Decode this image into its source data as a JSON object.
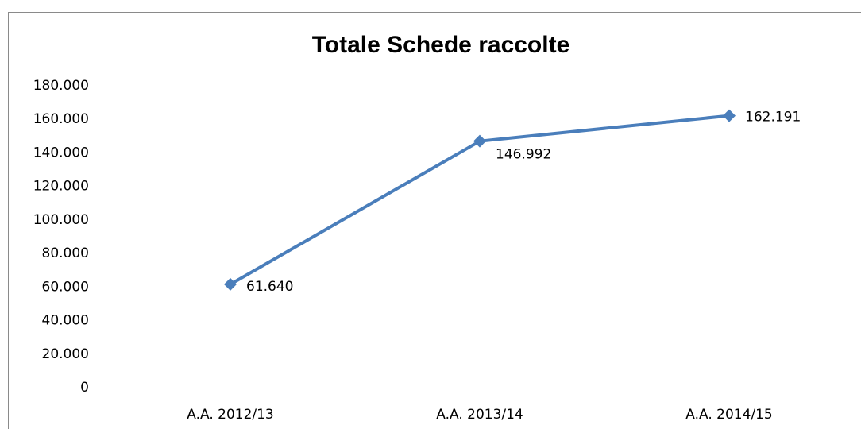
{
  "chart_data": {
    "type": "line",
    "title": "Totale Schede raccolte",
    "categories": [
      "A.A. 2012/13",
      "A.A. 2013/14",
      "A.A. 2014/15"
    ],
    "series": [
      {
        "name": "Totale Schede raccolte",
        "color": "#4a7ebb",
        "values": [
          61640,
          146992,
          162191
        ],
        "value_labels": [
          "61.640",
          "146.992",
          "162.191"
        ]
      }
    ],
    "ylim": [
      0,
      180000
    ],
    "yticks": [
      0,
      {
        "value": 20000,
        "label": "20.000"
      },
      {
        "value": 40000,
        "label": "40.000"
      },
      {
        "value": 60000,
        "label": "60.000"
      },
      {
        "value": 80000,
        "label": "80.000"
      },
      {
        "value": 100000,
        "label": "100.000"
      },
      {
        "value": 120000,
        "label": "120.000"
      },
      {
        "value": 140000,
        "label": "140.000"
      },
      {
        "value": 160000,
        "label": "160.000"
      },
      {
        "value": 180000,
        "label": "180.000"
      }
    ],
    "grid": false
  }
}
